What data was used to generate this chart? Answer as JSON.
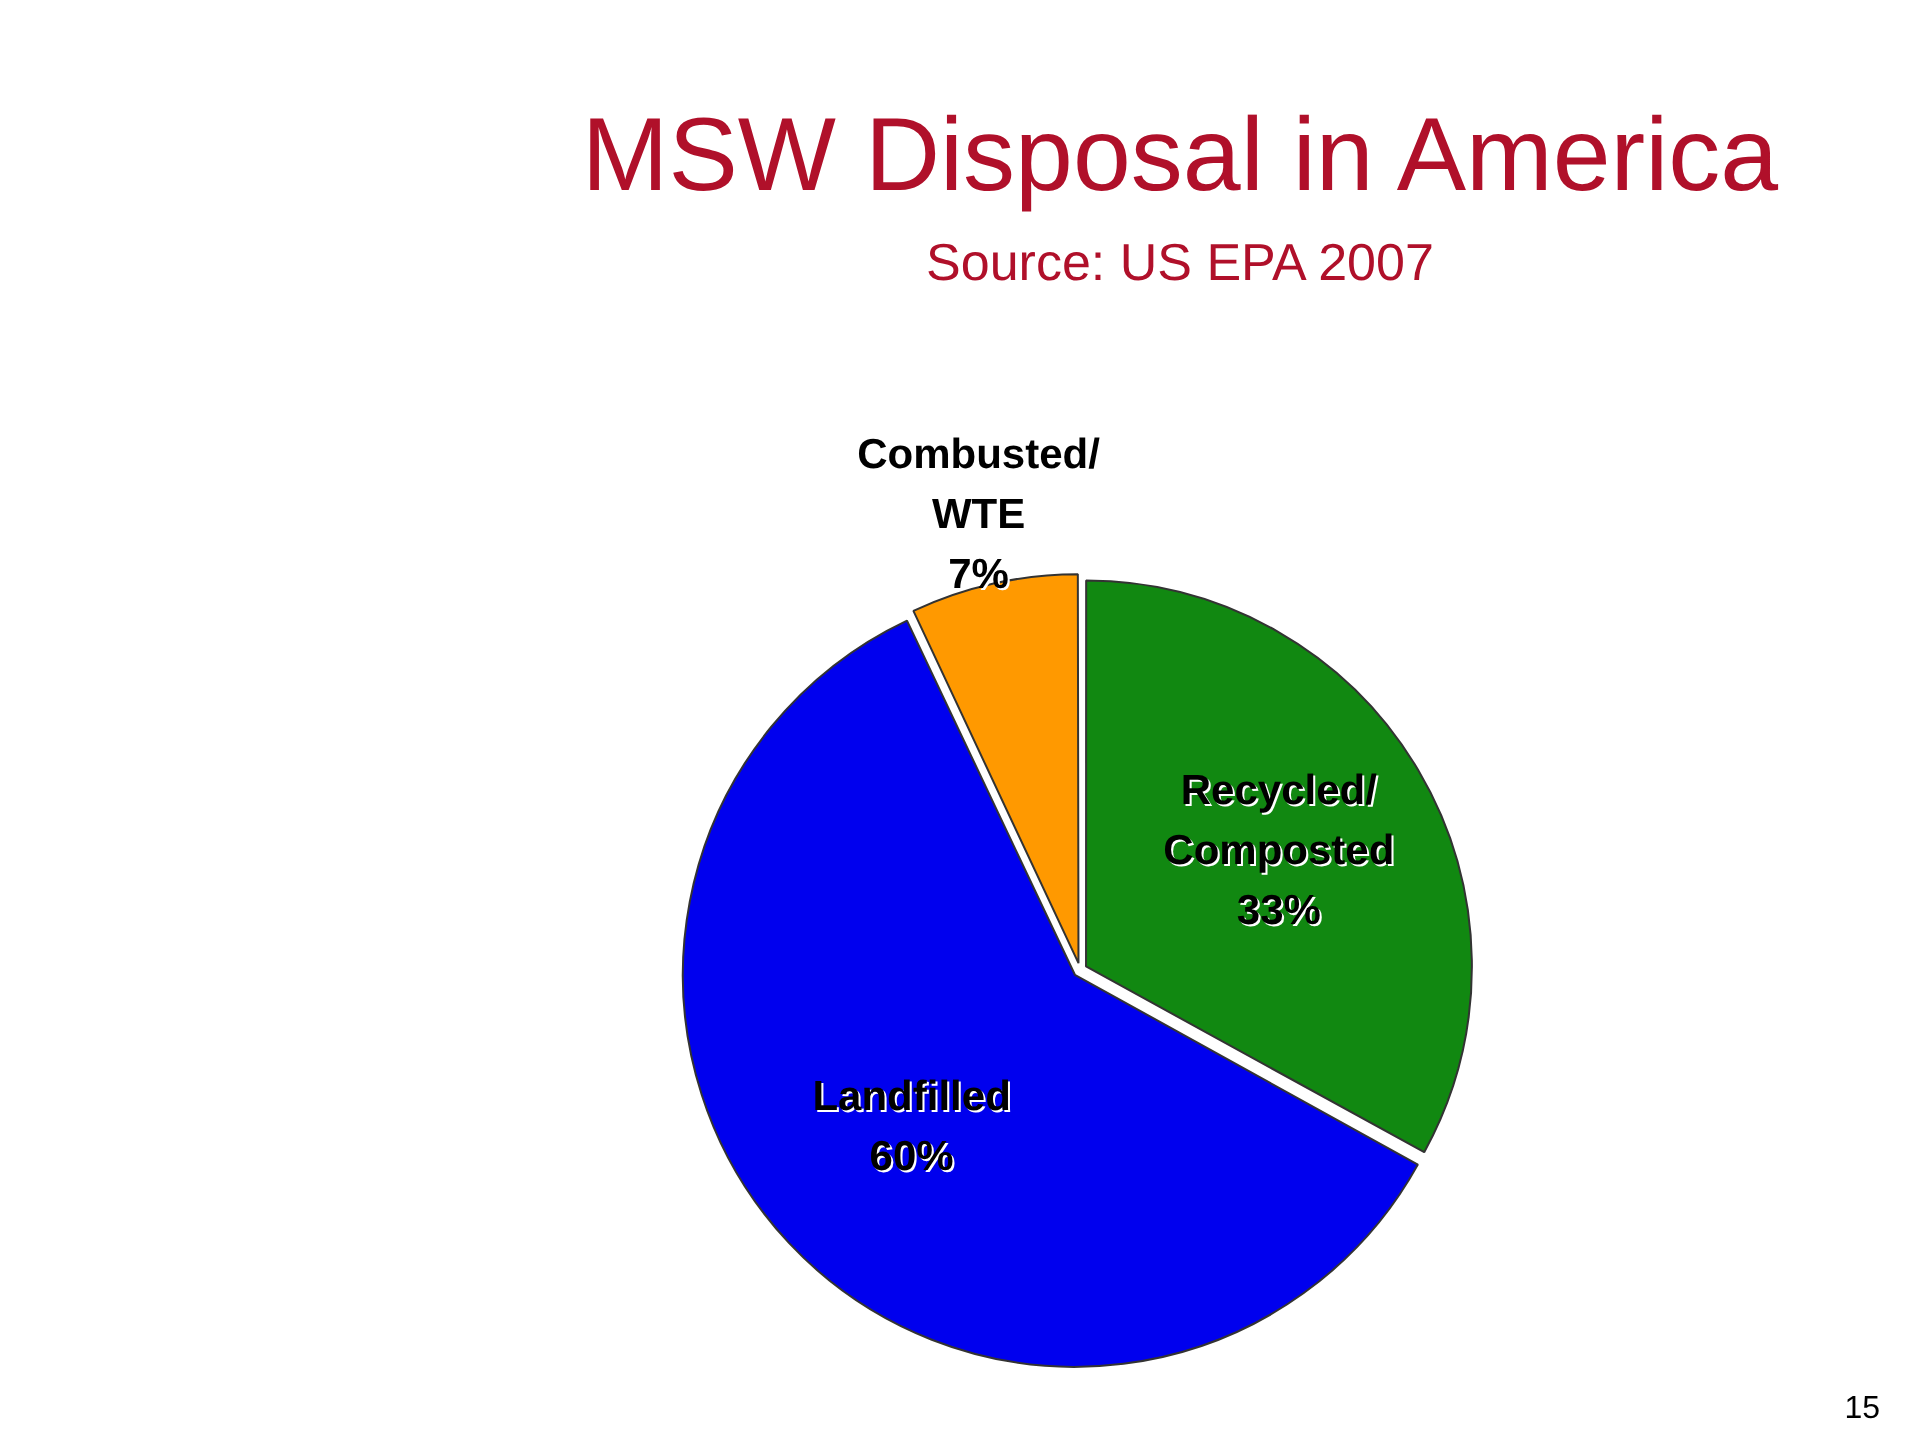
{
  "chart_data": {
    "type": "pie",
    "title": "MSW Disposal in America",
    "subtitle": "Source: US EPA 2007",
    "categories": [
      "Recycled/ Composted",
      "Landfilled",
      "Combusted/ WTE"
    ],
    "values": [
      33,
      60,
      7
    ],
    "colors": [
      "#118811",
      "#0000ee",
      "#ff9900"
    ],
    "value_labels": [
      "33%",
      "60%",
      "7%"
    ],
    "legend": false,
    "annotations": [
      "15"
    ]
  }
}
